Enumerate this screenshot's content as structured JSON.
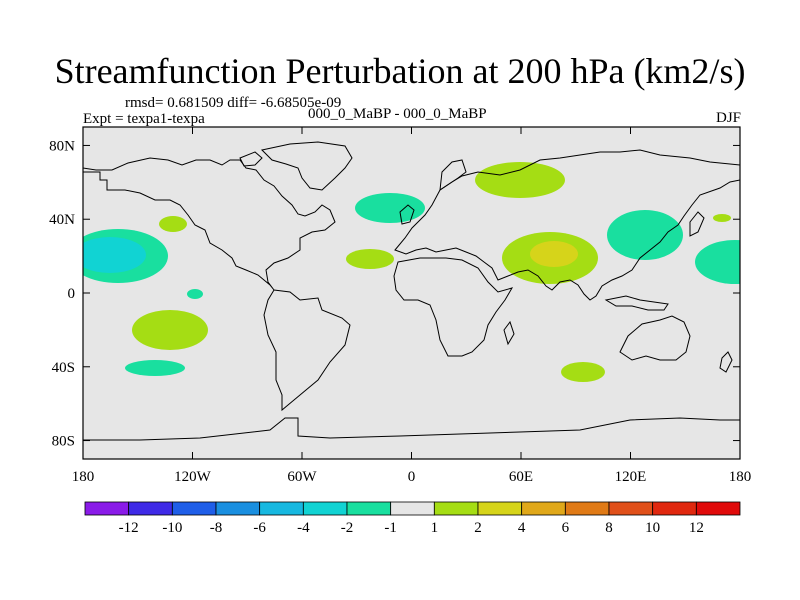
{
  "title": "Streamfunction Perturbation at 200 hPa (km2/s)",
  "stats_line": "rmsd= 0.681509 diff= -6.68505e-09",
  "experiment_line": "Expt = texpa1-texpa",
  "cases_line": "000_0_MaBP - 000_0_MaBP",
  "season": "DJF",
  "axes": {
    "x_ticks": [
      "180",
      "120W",
      "60W",
      "0",
      "60E",
      "120E",
      "180"
    ],
    "y_ticks": [
      "80N",
      "40N",
      "0",
      "40S",
      "80S"
    ]
  },
  "colorbar": {
    "labels": [
      "-12",
      "-10",
      "-8",
      "-6",
      "-4",
      "-2",
      "-1",
      "1",
      "2",
      "4",
      "6",
      "8",
      "10",
      "12"
    ],
    "colors": [
      "#8a1be8",
      "#3f2ae6",
      "#1f5ee8",
      "#1a8fe0",
      "#17b8e0",
      "#11d3d3",
      "#19df9f",
      "#e6e6e6",
      "#a5dd14",
      "#d6d41a",
      "#e0a81a",
      "#e07a16",
      "#e0501a",
      "#e0280f",
      "#e00a0a"
    ]
  },
  "colors": {
    "ocean_background": "#e6e6e6",
    "coastline": "#000000"
  }
}
